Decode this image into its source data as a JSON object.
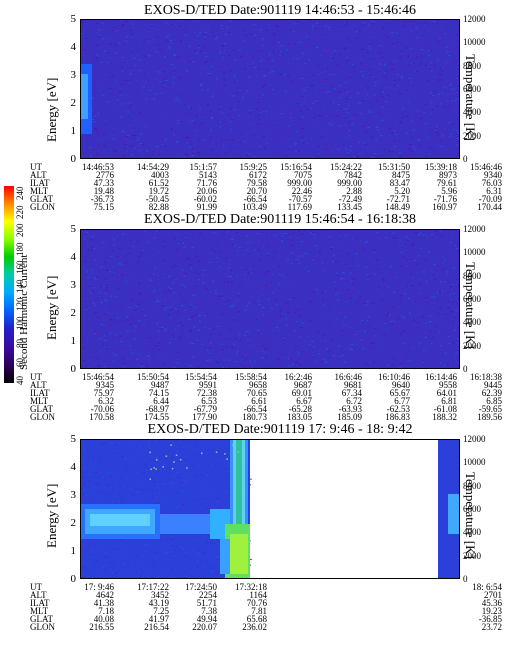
{
  "chart_data": [
    {
      "type": "heatmap",
      "title": "EXOS-D/TED   Date:901119  14:46:53 - 15:46:46",
      "ylabel_left": "Energy [eV]",
      "ylabel_right": "Temperature [K]",
      "y_ticks_left": [
        "5",
        "4",
        "3",
        "2",
        "1",
        "0"
      ],
      "y_ticks_right": [
        "12000",
        "10000",
        "8000",
        "6000",
        "4000",
        "2000",
        "0"
      ],
      "ylim_left": [
        0,
        5
      ],
      "ylim_right": [
        0,
        12000
      ],
      "ephemeris": {
        "labels": [
          "UT",
          "ALT",
          "ILAT",
          "MLT",
          "GLAT",
          "GLON"
        ],
        "columns": [
          [
            "14:46:53",
            "2776",
            "47.33",
            "19.48",
            "-36.73",
            "75.15"
          ],
          [
            "14:54:29",
            "4003",
            "61.52",
            "19.72",
            "-50.45",
            "82.88"
          ],
          [
            "15:1:57",
            "5143",
            "71.76",
            "20.06",
            "-60.02",
            "91.99"
          ],
          [
            "15:9:25",
            "6172",
            "79.58",
            "20.70",
            "-66.54",
            "103.49"
          ],
          [
            "15:16:54",
            "7075",
            "999.00",
            "22.46",
            "-70.57",
            "117.69"
          ],
          [
            "15:24:22",
            "7842",
            "999.00",
            "2.88",
            "-72.49",
            "133.45"
          ],
          [
            "15:31:50",
            "8475",
            "83.47",
            "5.20",
            "-72.71",
            "148.49"
          ],
          [
            "15:39:18",
            "8973",
            "79.61",
            "5.96",
            "-71.76",
            "160.97"
          ],
          [
            "15:46:46",
            "9340",
            "76.03",
            "6.31",
            "-70.09",
            "170.44"
          ]
        ]
      }
    },
    {
      "type": "heatmap",
      "title": "EXOS-D/TED   Date:901119  15:46:54 - 16:18:38",
      "ylabel_left": "Energy [eV]",
      "ylabel_right": "Temperature [K]",
      "y_ticks_left": [
        "5",
        "4",
        "3",
        "2",
        "1",
        "0"
      ],
      "y_ticks_right": [
        "12000",
        "10000",
        "8000",
        "6000",
        "4000",
        "2000",
        "0"
      ],
      "ylim_left": [
        0,
        5
      ],
      "ylim_right": [
        0,
        12000
      ],
      "ephemeris": {
        "labels": [
          "UT",
          "ALT",
          "ILAT",
          "MLT",
          "GLAT",
          "GLON"
        ],
        "columns": [
          [
            "15:46:54",
            "9345",
            "75.97",
            "6.32",
            "-70.06",
            "170.58"
          ],
          [
            "15:50:54",
            "9487",
            "74.15",
            "6.44",
            "-68.97",
            "174.55"
          ],
          [
            "15:54:54",
            "9591",
            "72.38",
            "6.53",
            "-67.79",
            "177.90"
          ],
          [
            "15:58:54",
            "9658",
            "70.65",
            "6.61",
            "-66.54",
            "180.73"
          ],
          [
            "16:2:46",
            "9687",
            "69.01",
            "6.67",
            "-65.28",
            "183.05"
          ],
          [
            "16:6:46",
            "9681",
            "67.34",
            "6.72",
            "-63.93",
            "185.09"
          ],
          [
            "16:10:46",
            "9640",
            "65.67",
            "6.77",
            "-62.53",
            "186.83"
          ],
          [
            "16:14:46",
            "9558",
            "64.01",
            "6.81",
            "-61.08",
            "188.32"
          ],
          [
            "16:18:38",
            "9445",
            "62.39",
            "6.85",
            "-59.65",
            "189.56"
          ]
        ]
      }
    },
    {
      "type": "heatmap",
      "title": "EXOS-D/TED   Date:901119  17: 9:46 - 18: 9:42",
      "ylabel_left": "Energy [eV]",
      "ylabel_right": "Temperature [K]",
      "y_ticks_left": [
        "5",
        "4",
        "3",
        "2",
        "1",
        "0"
      ],
      "y_ticks_right": [
        "12000",
        "10000",
        "8000",
        "6000",
        "4000",
        "2000",
        "0"
      ],
      "ylim_left": [
        0,
        5
      ],
      "ylim_right": [
        0,
        12000
      ],
      "ephemeris": {
        "labels": [
          "UT",
          "ALT",
          "ILAT",
          "MLT",
          "GLAT",
          "GLON"
        ],
        "columns": [
          [
            "17: 9:46",
            "4642",
            "41.38",
            "7.18",
            "40.08",
            "216.55"
          ],
          [
            "17:17:22",
            "3452",
            "43.19",
            "7.25",
            "41.97",
            "216.54"
          ],
          [
            "17:24:50",
            "2254",
            "51.71",
            "7.38",
            "49.94",
            "220.07"
          ],
          [
            "17:32:18",
            "1164",
            "70.76",
            "7.81",
            "65.68",
            "236.02"
          ],
          [
            "18: 6:54",
            "2701",
            "45.36",
            "19.23",
            "-36.85",
            "23.72"
          ]
        ]
      }
    }
  ],
  "colorbar": {
    "label": "Second Harmonic Current",
    "ticks": [
      "240",
      "220",
      "200",
      "180",
      "160",
      "140",
      "120",
      "100",
      "80",
      "60",
      "40"
    ],
    "colors": [
      "#ff0000",
      "#ff8800",
      "#ffff00",
      "#88ff00",
      "#00cc00",
      "#00ccaa",
      "#00aaff",
      "#0066ff",
      "#2222cc",
      "#3a0aa0",
      "#2a0050",
      "#000000"
    ]
  }
}
